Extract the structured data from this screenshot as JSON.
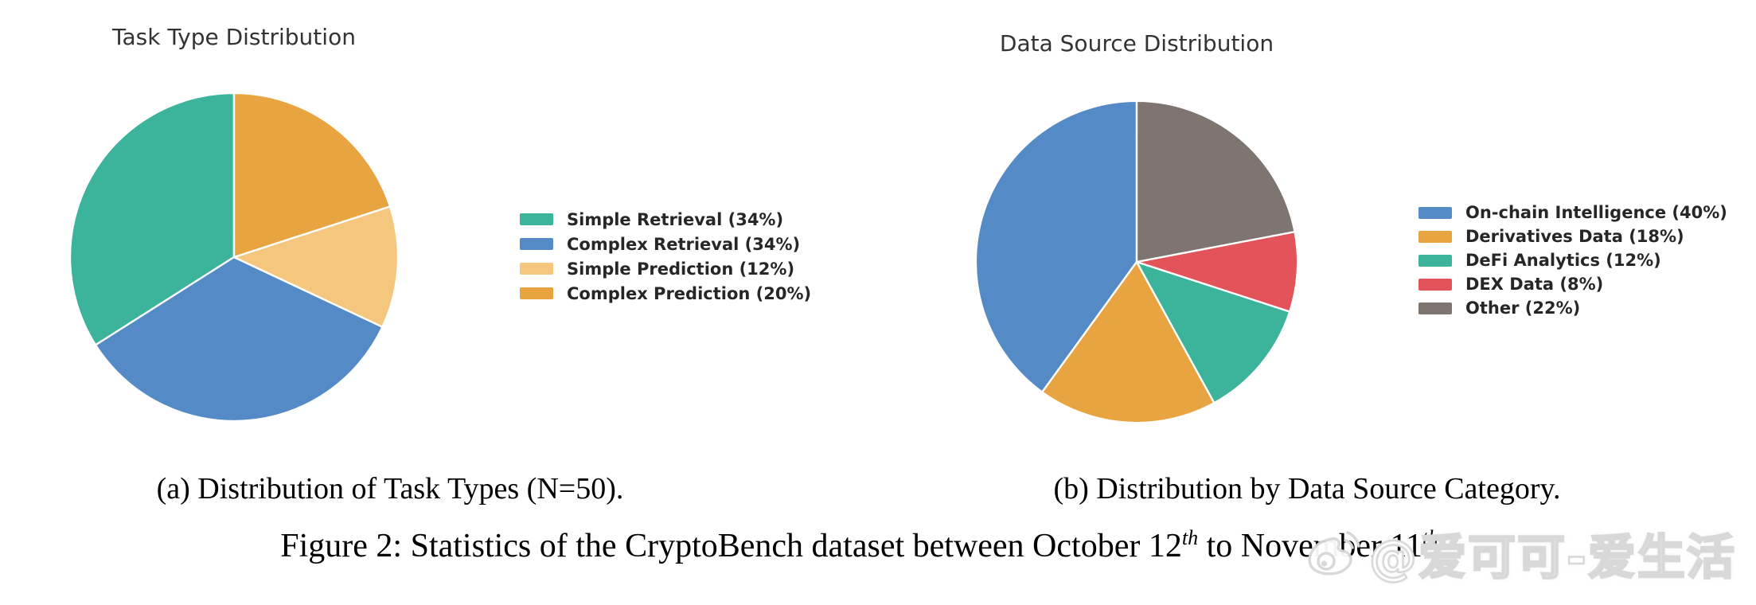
{
  "chart_data": [
    {
      "type": "pie",
      "title": "Task Type Distribution",
      "labels": [
        "Simple Retrieval",
        "Complex Retrieval",
        "Simple Prediction",
        "Complex Prediction"
      ],
      "values": [
        34,
        34,
        12,
        20
      ],
      "legend_labels": [
        "Simple Retrieval (34%)",
        "Complex Retrieval (34%)",
        "Simple Prediction (12%)",
        "Complex Prediction (20%)"
      ],
      "colors": [
        "#3cb39b",
        "#548bc6",
        "#f5c77e",
        "#e8a440"
      ],
      "start_angle_deg": 90,
      "direction": "counterclockwise",
      "legend_position": "right"
    },
    {
      "type": "pie",
      "title": "Data Source Distribution",
      "labels": [
        "On-chain Intelligence",
        "Derivatives Data",
        "DeFi Analytics",
        "DEX Data",
        "Other"
      ],
      "values": [
        40,
        18,
        12,
        8,
        22
      ],
      "legend_labels": [
        "On-chain Intelligence (40%)",
        "Derivatives Data (18%)",
        "DeFi Analytics (12%)",
        "DEX Data (8%)",
        "Other (22%)"
      ],
      "colors": [
        "#548bc6",
        "#e8a440",
        "#3cb39b",
        "#e2535a",
        "#7e7470"
      ],
      "start_angle_deg": 90,
      "direction": "counterclockwise",
      "legend_position": "right"
    }
  ],
  "subcaptions": {
    "a": "(a) Distribution of Task Types (N=50).",
    "b": "(b) Distribution by Data Source Category."
  },
  "main_caption": {
    "part1": "Figure 2: Statistics of the CryptoBench dataset between October 12",
    "sup1": "th",
    "part2": " to November 11",
    "sup2": "th",
    "part3": "."
  },
  "watermark": {
    "icon": "weibo-logo",
    "text": "@爱可可-爱生活"
  }
}
